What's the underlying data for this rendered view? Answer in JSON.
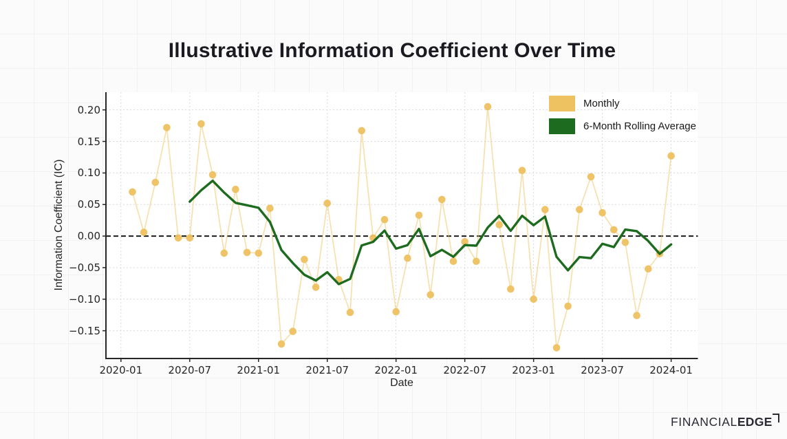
{
  "page": {
    "background_color": "#fbfbfb",
    "grid_line_color": "#f1f1f4"
  },
  "header": {
    "title": "Illustrative Information Coefficient Over Time",
    "title_color": "#1b1a21"
  },
  "legend": {
    "items": [
      {
        "label": "Monthly",
        "color": "#eec161"
      },
      {
        "label": "6-Month Rolling Average",
        "color": "#1c6b1f"
      }
    ]
  },
  "branding": {
    "brand_thin": "FINANCIAL",
    "brand_bold": "EDGE",
    "color": "#2b2933"
  },
  "chart_data": {
    "type": "line",
    "title": "Illustrative Information Coefficient Over Time",
    "xlabel": "Date",
    "ylabel": "Information Coefficient (IC)",
    "grid": true,
    "zero_line": true,
    "legend_position": "upper right",
    "x_tick_labels": [
      "2020-01",
      "2020-07",
      "2021-01",
      "2021-07",
      "2022-01",
      "2022-07",
      "2023-01",
      "2023-07",
      "2024-01"
    ],
    "y_tick_values": [
      0.2,
      0.15,
      0.1,
      0.05,
      0.0,
      -0.05,
      -0.1,
      -0.15
    ],
    "y_tick_labels": [
      "0.20",
      "0.15",
      "0.10",
      "0.05",
      "0.00",
      "−0.05",
      "−0.10",
      "−0.15"
    ],
    "ylim": [
      -0.194,
      0.228
    ],
    "months": [
      "2020-01",
      "2020-02",
      "2020-03",
      "2020-04",
      "2020-05",
      "2020-06",
      "2020-07",
      "2020-08",
      "2020-09",
      "2020-10",
      "2020-11",
      "2020-12",
      "2021-01",
      "2021-02",
      "2021-03",
      "2021-04",
      "2021-05",
      "2021-06",
      "2021-07",
      "2021-08",
      "2021-09",
      "2021-10",
      "2021-11",
      "2021-12",
      "2022-01",
      "2022-02",
      "2022-03",
      "2022-04",
      "2022-05",
      "2022-06",
      "2022-07",
      "2022-08",
      "2022-09",
      "2022-10",
      "2022-11",
      "2022-12",
      "2023-01",
      "2023-02",
      "2023-03",
      "2023-04",
      "2023-05",
      "2023-06",
      "2023-07",
      "2023-08",
      "2023-09",
      "2023-10",
      "2023-11",
      "2023-12"
    ],
    "series": [
      {
        "name": "Monthly",
        "style": "line_with_markers",
        "marker_color": "#eec161",
        "line_color": "rgba(238,193,94,0.5)",
        "values": [
          0.07,
          0.006,
          0.085,
          0.172,
          -0.003,
          -0.003,
          0.178,
          0.097,
          -0.027,
          0.074,
          -0.026,
          -0.027,
          0.044,
          -0.171,
          -0.151,
          -0.037,
          -0.081,
          0.052,
          -0.069,
          -0.121,
          0.167,
          -0.003,
          0.026,
          -0.12,
          -0.035,
          0.033,
          -0.093,
          0.058,
          -0.04,
          -0.009,
          -0.04,
          0.205,
          0.018,
          -0.084,
          0.104,
          -0.1,
          0.042,
          -0.177,
          -0.111,
          0.042,
          0.094,
          0.037,
          0.01,
          -0.01,
          -0.126,
          -0.052,
          -0.028,
          0.127
        ]
      },
      {
        "name": "6-Month Rolling Average",
        "style": "line",
        "line_color": "#1c6b1f",
        "start_month_index": 5,
        "values": [
          0.0545,
          0.0725,
          0.0877,
          0.069,
          0.0527,
          0.0488,
          0.0448,
          0.0225,
          -0.0222,
          -0.0428,
          -0.0613,
          -0.0705,
          -0.0573,
          -0.0762,
          -0.0678,
          -0.0148,
          -0.0092,
          0.0087,
          -0.02,
          -0.0143,
          0.0113,
          -0.032,
          -0.0218,
          -0.0328,
          -0.0143,
          -0.0152,
          0.0135,
          0.032,
          0.0083,
          0.0323,
          0.0172,
          0.0308,
          -0.0328,
          -0.0543,
          -0.0333,
          -0.035,
          -0.0122,
          -0.0175,
          0.0103,
          0.0078,
          -0.0078,
          -0.0282,
          -0.0132
        ]
      }
    ],
    "style_hints": {
      "plot_bg": "#ffffff",
      "spine_color": "#262626",
      "gridline_color": "#d9d9dc",
      "zero_line_color": "#1a1a1a",
      "tick_color": "#262626"
    }
  }
}
